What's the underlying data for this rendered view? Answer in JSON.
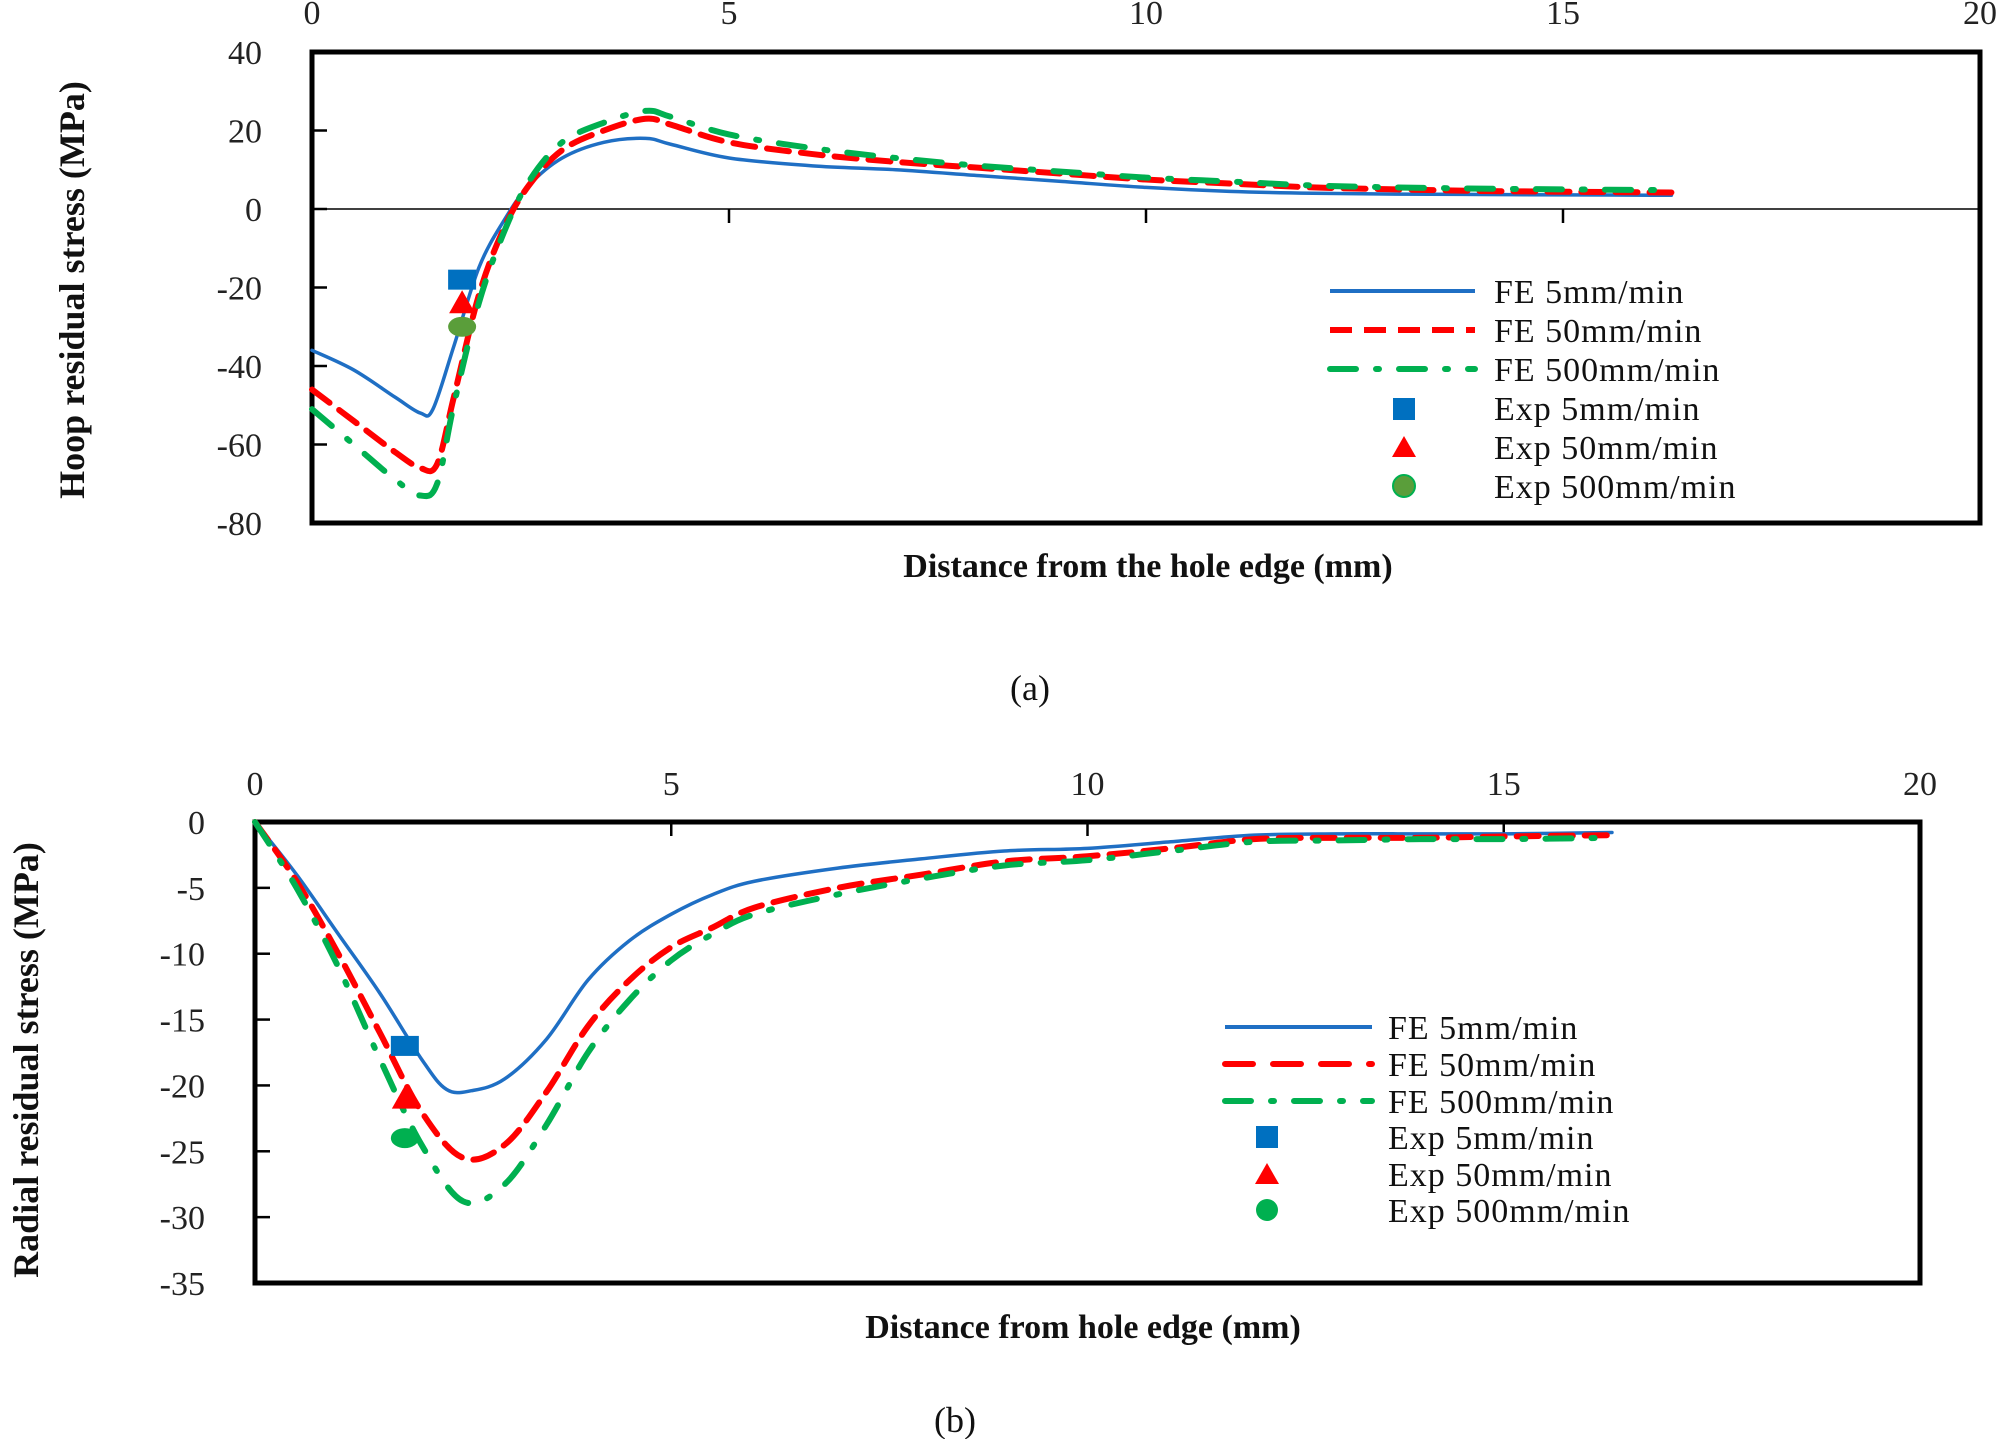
{
  "chart_data": [
    {
      "id": "a",
      "type": "line",
      "caption": "(a)",
      "title": "",
      "xlabel": "Distance from the hole edge (mm)",
      "ylabel": "Hoop residual stress (MPa)",
      "xlim": [
        0,
        20
      ],
      "ylim": [
        -80,
        40
      ],
      "x_ticks": [
        "0",
        "5",
        "10",
        "15",
        "20"
      ],
      "y_ticks": [
        "40",
        "20",
        "0",
        "-20",
        "-40",
        "-60",
        "-80"
      ],
      "x_axis_position": "top",
      "grid": false,
      "legend_position": "inside-right",
      "series": [
        {
          "name": "FE 5mm/min",
          "style": "solid",
          "color": "#1f6fc4",
          "x": [
            0,
            0.5,
            1.0,
            1.3,
            1.45,
            1.7,
            2.0,
            2.3,
            2.6,
            3.0,
            3.5,
            4.0,
            4.3,
            5.0,
            6.0,
            7.0,
            8.0,
            9.0,
            10.0,
            11.0,
            12.0,
            13.0,
            14.0,
            15.0,
            16.3
          ],
          "y": [
            -36,
            -41,
            -48,
            -52,
            -51,
            -35,
            -15,
            -3,
            6,
            13,
            17,
            18,
            16.5,
            13,
            11,
            10,
            8.5,
            7,
            5.5,
            4.5,
            4,
            3.8,
            3.7,
            3.6,
            3.5
          ]
        },
        {
          "name": "FE 50mm/min",
          "style": "dashed",
          "color": "#ff0000",
          "x": [
            0,
            0.5,
            1.0,
            1.3,
            1.5,
            1.7,
            2.0,
            2.3,
            2.6,
            3.0,
            3.5,
            4.0,
            4.3,
            5.0,
            6.0,
            7.0,
            8.0,
            9.0,
            10.0,
            11.0,
            12.0,
            13.0,
            14.0,
            15.0,
            16.3
          ],
          "y": [
            -46,
            -54,
            -62,
            -66,
            -65,
            -48,
            -22,
            -5,
            6,
            15,
            20,
            23,
            21.5,
            17,
            14,
            12,
            10.5,
            9,
            7.5,
            6.5,
            5.5,
            5,
            4.6,
            4.4,
            4.2
          ]
        },
        {
          "name": "FE 500mm/min",
          "style": "dashdot",
          "color": "#00b050",
          "x": [
            0,
            0.5,
            1.0,
            1.3,
            1.5,
            1.7,
            2.0,
            2.3,
            2.6,
            3.0,
            3.5,
            4.0,
            4.3,
            5.0,
            6.0,
            7.0,
            8.0,
            9.0,
            10.0,
            11.0,
            12.0,
            13.0,
            14.0,
            15.0,
            16.3
          ],
          "y": [
            -51,
            -60,
            -69,
            -73,
            -70,
            -50,
            -24,
            -6,
            7,
            17,
            22,
            25,
            23.5,
            19,
            15.5,
            13,
            11,
            9.5,
            8,
            7,
            6,
            5.5,
            5.2,
            5,
            4.8
          ]
        },
        {
          "name": "Exp 5mm/min",
          "style": "marker",
          "marker": "square",
          "color": "#0070c0",
          "x": [
            1.8
          ],
          "y": [
            -18
          ]
        },
        {
          "name": "Exp 50mm/min",
          "style": "marker",
          "marker": "triangle",
          "color": "#ff0000",
          "x": [
            1.8
          ],
          "y": [
            -24
          ]
        },
        {
          "name": "Exp 500mm/min",
          "style": "marker",
          "marker": "circle",
          "color": "#5a9e3a",
          "x": [
            1.8
          ],
          "y": [
            -30
          ]
        }
      ]
    },
    {
      "id": "b",
      "type": "line",
      "caption": "(b)",
      "title": "",
      "xlabel": "Distance from hole edge (mm)",
      "ylabel": "Radial residual stress (MPa)",
      "xlim": [
        0,
        20
      ],
      "ylim": [
        -35,
        0
      ],
      "x_ticks": [
        "0",
        "5",
        "10",
        "15",
        "20"
      ],
      "y_ticks": [
        "0",
        "-5",
        "-10",
        "-15",
        "-20",
        "-25",
        "-30",
        "-35"
      ],
      "x_axis_position": "top",
      "grid": false,
      "legend_position": "inside-right",
      "series": [
        {
          "name": "FE 5mm/min",
          "style": "solid",
          "color": "#1f6fc4",
          "x": [
            0,
            0.5,
            1.0,
            1.5,
            2.0,
            2.3,
            2.6,
            3.0,
            3.5,
            4.0,
            4.5,
            5.0,
            5.5,
            6.0,
            7.0,
            8.0,
            9.0,
            10.0,
            11.0,
            12.0,
            13.0,
            14.0,
            15.0,
            16.3
          ],
          "y": [
            0,
            -4,
            -8.5,
            -13,
            -18,
            -20.3,
            -20.4,
            -19.5,
            -16.5,
            -12,
            -9,
            -7,
            -5.5,
            -4.5,
            -3.5,
            -2.8,
            -2.2,
            -2.0,
            -1.5,
            -1.0,
            -0.9,
            -0.9,
            -0.9,
            -0.8
          ]
        },
        {
          "name": "FE 50mm/min",
          "style": "dashed",
          "color": "#ff0000",
          "x": [
            0,
            0.5,
            1.0,
            1.5,
            2.0,
            2.5,
            3.0,
            3.5,
            4.0,
            4.5,
            5.0,
            5.5,
            6.0,
            7.0,
            8.0,
            9.0,
            10.0,
            11.0,
            12.0,
            13.0,
            14.0,
            15.0,
            16.3
          ],
          "y": [
            0,
            -4.5,
            -10,
            -16,
            -22,
            -25.5,
            -24.5,
            -20.5,
            -15.5,
            -12,
            -9.5,
            -8,
            -6.5,
            -5,
            -4,
            -3,
            -2.6,
            -2,
            -1.3,
            -1.2,
            -1.2,
            -1.1,
            -1.0
          ]
        },
        {
          "name": "FE 500mm/min",
          "style": "dashdot",
          "color": "#00b050",
          "x": [
            0,
            0.5,
            1.0,
            1.5,
            2.0,
            2.5,
            3.0,
            3.5,
            4.0,
            4.5,
            5.0,
            5.5,
            6.0,
            7.0,
            8.0,
            9.0,
            10.0,
            11.0,
            12.0,
            13.0,
            14.0,
            15.0,
            16.3
          ],
          "y": [
            0,
            -5,
            -11,
            -18,
            -24.5,
            -28.8,
            -27.5,
            -23,
            -17.5,
            -13.5,
            -10.5,
            -8.5,
            -7,
            -5.5,
            -4.3,
            -3.3,
            -2.9,
            -2.2,
            -1.5,
            -1.4,
            -1.3,
            -1.3,
            -1.2
          ]
        },
        {
          "name": "Exp 5mm/min",
          "style": "marker",
          "marker": "square",
          "color": "#0070c0",
          "x": [
            1.8
          ],
          "y": [
            -17
          ]
        },
        {
          "name": "Exp 50mm/min",
          "style": "marker",
          "marker": "triangle",
          "color": "#ff0000",
          "x": [
            1.8
          ],
          "y": [
            -21
          ]
        },
        {
          "name": "Exp 500mm/min",
          "style": "marker",
          "marker": "circle",
          "color": "#00b050",
          "x": [
            1.8
          ],
          "y": [
            -24
          ]
        }
      ]
    }
  ],
  "colors": {
    "fe5": "#1f6fc4",
    "fe50": "#ff0000",
    "fe500": "#00b050",
    "exp5": "#0070c0",
    "exp50": "#ff0000",
    "exp500_a": "#5a9e3a",
    "exp500_b": "#00b050",
    "axis": "#000000"
  }
}
